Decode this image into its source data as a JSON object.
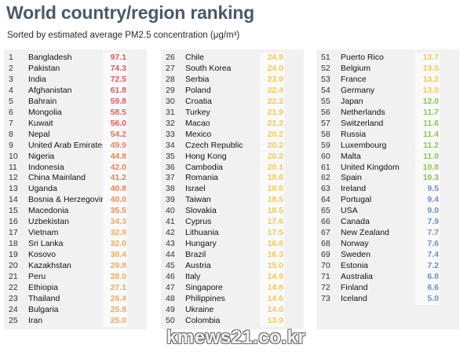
{
  "title": "World country/region ranking",
  "subtitle": "Sorted by estimated average PM2.5 concentration (μg/m³)",
  "watermark": "kmews21.co.kr",
  "colors": {
    "very_high": "#e8555f",
    "high": "#ee7d56",
    "medium_high": "#f2a85a",
    "medium": "#f3c84f",
    "low": "#8cc44f",
    "very_low": "#6f91c7"
  },
  "columns": [
    [
      {
        "rank": "1",
        "country": "Bangladesh",
        "value": "97.1",
        "color": "#e8555f"
      },
      {
        "rank": "2",
        "country": "Pakistan",
        "value": "74.3",
        "color": "#e8555f"
      },
      {
        "rank": "3",
        "country": "India",
        "value": "72.5",
        "color": "#e8555f"
      },
      {
        "rank": "4",
        "country": "Afghanistan",
        "value": "61.8",
        "color": "#e8555f"
      },
      {
        "rank": "5",
        "country": "Bahrain",
        "value": "59.8",
        "color": "#e8555f"
      },
      {
        "rank": "6",
        "country": "Mongolia",
        "value": "58.5",
        "color": "#e8555f"
      },
      {
        "rank": "7",
        "country": "Kuwait",
        "value": "56.0",
        "color": "#e8555f"
      },
      {
        "rank": "8",
        "country": "Nepal",
        "value": "54.2",
        "color": "#ee6a5a"
      },
      {
        "rank": "9",
        "country": "United Arab Emirates",
        "value": "49.9",
        "color": "#ee7d56"
      },
      {
        "rank": "10",
        "country": "Nigeria",
        "value": "44.8",
        "color": "#ee7d56"
      },
      {
        "rank": "11",
        "country": "Indonesia",
        "value": "42.0",
        "color": "#ee7d56"
      },
      {
        "rank": "12",
        "country": "China Mainland",
        "value": "41.2",
        "color": "#ee7d56"
      },
      {
        "rank": "13",
        "country": "Uganda",
        "value": "40.8",
        "color": "#ee7d56"
      },
      {
        "rank": "14",
        "country": "Bosnia & Herzegovina",
        "value": "40.0",
        "color": "#f08a55"
      },
      {
        "rank": "15",
        "country": "Macedonia",
        "value": "35.5",
        "color": "#f08a55"
      },
      {
        "rank": "16",
        "country": "Uzbekistan",
        "value": "34.3",
        "color": "#f2a85a"
      },
      {
        "rank": "17",
        "country": "Vietnam",
        "value": "32.9",
        "color": "#f2a85a"
      },
      {
        "rank": "18",
        "country": "Sri Lanka",
        "value": "32.0",
        "color": "#f2a85a"
      },
      {
        "rank": "19",
        "country": "Kosovo",
        "value": "30.4",
        "color": "#f2a85a"
      },
      {
        "rank": "20",
        "country": "Kazakhstan",
        "value": "29.8",
        "color": "#f2a85a"
      },
      {
        "rank": "21",
        "country": "Peru",
        "value": "28.0",
        "color": "#f2a85a"
      },
      {
        "rank": "22",
        "country": "Ethiopia",
        "value": "27.1",
        "color": "#f2a85a"
      },
      {
        "rank": "23",
        "country": "Thailand",
        "value": "26.4",
        "color": "#f2a85a"
      },
      {
        "rank": "24",
        "country": "Bulgaria",
        "value": "25.8",
        "color": "#f2a85a"
      },
      {
        "rank": "25",
        "country": "Iran",
        "value": "25.0",
        "color": "#f2a85a"
      }
    ],
    [
      {
        "rank": "26",
        "country": "Chile",
        "value": "24.9",
        "color": "#f3c84f"
      },
      {
        "rank": "27",
        "country": "South Korea",
        "value": "24.0",
        "color": "#f3c84f"
      },
      {
        "rank": "28",
        "country": "Serbia",
        "value": "23.9",
        "color": "#f3c84f"
      },
      {
        "rank": "29",
        "country": "Poland",
        "value": "22.4",
        "color": "#f3c84f"
      },
      {
        "rank": "30",
        "country": "Croatia",
        "value": "22.2",
        "color": "#f3c84f"
      },
      {
        "rank": "31",
        "country": "Turkey",
        "value": "21.9",
        "color": "#f3c84f"
      },
      {
        "rank": "32",
        "country": "Macao",
        "value": "21.2",
        "color": "#f3c84f"
      },
      {
        "rank": "33",
        "country": "Mexico",
        "value": "20.2",
        "color": "#f3c84f"
      },
      {
        "rank": "34",
        "country": "Czech Republic",
        "value": "20.2",
        "color": "#f3c84f"
      },
      {
        "rank": "35",
        "country": "Hong Kong",
        "value": "20.2",
        "color": "#f3c84f"
      },
      {
        "rank": "36",
        "country": "Cambodia",
        "value": "20.1",
        "color": "#f3c84f"
      },
      {
        "rank": "37",
        "country": "Romania",
        "value": "18.6",
        "color": "#f3c84f"
      },
      {
        "rank": "38",
        "country": "Israel",
        "value": "18.6",
        "color": "#f3c84f"
      },
      {
        "rank": "39",
        "country": "Taiwan",
        "value": "18.5",
        "color": "#f3c84f"
      },
      {
        "rank": "40",
        "country": "Slovakia",
        "value": "18.5",
        "color": "#f3c84f"
      },
      {
        "rank": "41",
        "country": "Cyprus",
        "value": "17.6",
        "color": "#f3c84f"
      },
      {
        "rank": "42",
        "country": "Lithuania",
        "value": "17.5",
        "color": "#f3c84f"
      },
      {
        "rank": "43",
        "country": "Hungary",
        "value": "16.8",
        "color": "#f3c84f"
      },
      {
        "rank": "44",
        "country": "Brazil",
        "value": "16.3",
        "color": "#f3c84f"
      },
      {
        "rank": "45",
        "country": "Austria",
        "value": "15.0",
        "color": "#f3c84f"
      },
      {
        "rank": "46",
        "country": "Italy",
        "value": "14.9",
        "color": "#f3c84f"
      },
      {
        "rank": "47",
        "country": "Singapore",
        "value": "14.8",
        "color": "#f3c84f"
      },
      {
        "rank": "48",
        "country": "Philippines",
        "value": "14.6",
        "color": "#f3c84f"
      },
      {
        "rank": "49",
        "country": "Ukraine",
        "value": "14.0",
        "color": "#f3c84f"
      },
      {
        "rank": "50",
        "country": "Colombia",
        "value": "13.9",
        "color": "#f3c84f"
      }
    ],
    [
      {
        "rank": "51",
        "country": "Puerto Rico",
        "value": "13.7",
        "color": "#f3c84f"
      },
      {
        "rank": "52",
        "country": "Belgium",
        "value": "13.5",
        "color": "#f3c84f"
      },
      {
        "rank": "53",
        "country": "France",
        "value": "13.2",
        "color": "#f3c84f"
      },
      {
        "rank": "54",
        "country": "Germany",
        "value": "13.0",
        "color": "#f3c84f"
      },
      {
        "rank": "55",
        "country": "Japan",
        "value": "12.0",
        "color": "#8cc44f"
      },
      {
        "rank": "56",
        "country": "Netherlands",
        "value": "11.7",
        "color": "#8cc44f"
      },
      {
        "rank": "57",
        "country": "Switzerland",
        "value": "11.6",
        "color": "#8cc44f"
      },
      {
        "rank": "58",
        "country": "Russia",
        "value": "11.4",
        "color": "#8cc44f"
      },
      {
        "rank": "59",
        "country": "Luxembourg",
        "value": "11.2",
        "color": "#8cc44f"
      },
      {
        "rank": "60",
        "country": "Malta",
        "value": "11.0",
        "color": "#8cc44f"
      },
      {
        "rank": "61",
        "country": "United Kingdom",
        "value": "10.8",
        "color": "#8cc44f"
      },
      {
        "rank": "62",
        "country": "Spain",
        "value": "10.3",
        "color": "#8cc44f"
      },
      {
        "rank": "63",
        "country": "Ireland",
        "value": "9.5",
        "color": "#6f91c7"
      },
      {
        "rank": "64",
        "country": "Portugal",
        "value": "9.4",
        "color": "#6f91c7"
      },
      {
        "rank": "65",
        "country": "USA",
        "value": "9.0",
        "color": "#6f91c7"
      },
      {
        "rank": "66",
        "country": "Canada",
        "value": "7.9",
        "color": "#6f91c7"
      },
      {
        "rank": "67",
        "country": "New Zealand",
        "value": "7.7",
        "color": "#6f91c7"
      },
      {
        "rank": "68",
        "country": "Norway",
        "value": "7.6",
        "color": "#6f91c7"
      },
      {
        "rank": "69",
        "country": "Sweden",
        "value": "7.4",
        "color": "#6f91c7"
      },
      {
        "rank": "70",
        "country": "Estonia",
        "value": "7.2",
        "color": "#6f91c7"
      },
      {
        "rank": "71",
        "country": "Australia",
        "value": "6.8",
        "color": "#6f91c7"
      },
      {
        "rank": "72",
        "country": "Finland",
        "value": "6.6",
        "color": "#6f91c7"
      },
      {
        "rank": "73",
        "country": "Iceland",
        "value": "5.0",
        "color": "#6f91c7"
      }
    ]
  ]
}
